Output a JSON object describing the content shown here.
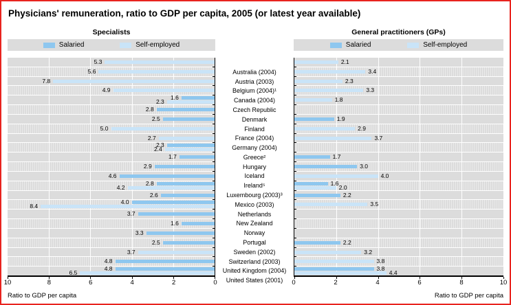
{
  "title": "Physicians' remuneration, ratio to GDP per capita, 2005 (or latest year available)",
  "legend": {
    "salaried": "Salaried",
    "self_employed": "Self-employed"
  },
  "colors": {
    "salaried": "#8ec7ef",
    "self_employed": "#c9e4f8",
    "plot_bg": "#dcdcdc",
    "frame_border": "#e8231e"
  },
  "axis": {
    "caption_left": "Ratio to GDP per capita",
    "caption_right": "Ratio to GDP per capita"
  },
  "chart_data": [
    {
      "type": "bar",
      "orientation": "horizontal",
      "direction": "right-to-left",
      "title": "Specialists",
      "xlabel": "Ratio to GDP per capita",
      "xlim": [
        0,
        10
      ],
      "ticks": [
        10,
        8,
        6,
        4,
        2,
        0
      ],
      "grid": true,
      "legend_position": "top",
      "categories": [
        "Australia (2004)",
        "Austria (2003)",
        "Belgium (2004)¹",
        "Canada (2004)",
        "Czech Republic",
        "Denmark",
        "Finland",
        "France (2004)",
        "Germany (2004)",
        "Greece²",
        "Hungary",
        "Iceland",
        "Ireland⁵",
        "Luxembourg (2003)³",
        "Mexico (2003)",
        "Netherlands",
        "New Zealand",
        "Norway",
        "Portugal",
        "Sweden (2002)",
        "Switzerland (2003)",
        "United Kingdom (2004)",
        "United States (2001)"
      ],
      "series": [
        {
          "name": "Salaried",
          "values": [
            null,
            null,
            null,
            null,
            1.6,
            2.8,
            2.5,
            null,
            null,
            2.3,
            1.7,
            2.9,
            4.6,
            2.8,
            2.6,
            4.0,
            3.7,
            1.6,
            3.3,
            2.5,
            null,
            4.8,
            4.8
          ]
        },
        {
          "name": "Self-employed",
          "values": [
            5.3,
            5.6,
            7.8,
            4.9,
            2.3,
            null,
            null,
            5.0,
            2.7,
            2.4,
            null,
            null,
            null,
            4.2,
            null,
            8.4,
            null,
            null,
            null,
            null,
            3.7,
            null,
            6.5
          ]
        }
      ]
    },
    {
      "type": "bar",
      "orientation": "horizontal",
      "direction": "left-to-right",
      "title": "General practitioners (GPs)",
      "xlabel": "Ratio to GDP per capita",
      "xlim": [
        0,
        10
      ],
      "ticks": [
        0,
        2,
        4,
        6,
        8,
        10
      ],
      "grid": true,
      "legend_position": "top",
      "categories": [
        "Australia (2004)",
        "Austria (2003)",
        "Belgium (2004)¹",
        "Canada (2004)",
        "Czech Republic",
        "Denmark",
        "Finland",
        "France (2004)",
        "Germany (2004)",
        "Greece²",
        "Hungary",
        "Iceland",
        "Ireland⁵",
        "Luxembourg (2003)³",
        "Mexico (2003)",
        "Netherlands",
        "New Zealand",
        "Norway",
        "Portugal",
        "Sweden (2002)",
        "Switzerland (2003)",
        "United Kingdom (2004)",
        "United States (2001)"
      ],
      "series": [
        {
          "name": "Salaried",
          "values": [
            null,
            null,
            null,
            null,
            null,
            null,
            1.9,
            null,
            null,
            null,
            1.7,
            3.0,
            null,
            1.6,
            2.2,
            null,
            null,
            null,
            null,
            2.2,
            null,
            null,
            3.8
          ]
        },
        {
          "name": "Self-employed",
          "values": [
            2.1,
            3.4,
            2.3,
            3.3,
            1.8,
            null,
            null,
            2.9,
            3.7,
            null,
            null,
            null,
            4.0,
            2.0,
            null,
            3.5,
            null,
            null,
            null,
            null,
            3.2,
            3.8,
            4.4
          ]
        }
      ]
    }
  ]
}
